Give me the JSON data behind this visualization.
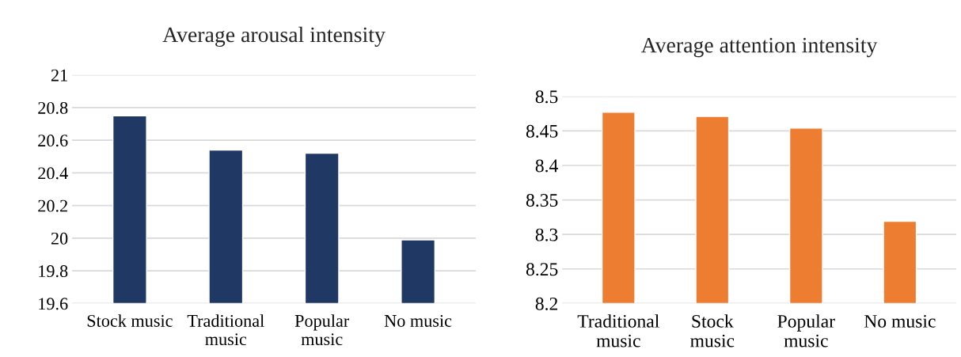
{
  "chart_data": [
    {
      "type": "bar",
      "title": "Average arousal intensity",
      "categories": [
        "Stock music",
        "Traditional\nmusic",
        "Popular\nmusic",
        "No music"
      ],
      "values": [
        20.75,
        20.54,
        20.52,
        19.99
      ],
      "color": "#203864",
      "ylim": [
        19.6,
        21
      ],
      "yticks": [
        19.6,
        19.8,
        20,
        20.2,
        20.4,
        20.6,
        20.8,
        21
      ],
      "grid": "y"
    },
    {
      "type": "bar",
      "title": "Average attention intensity",
      "categories": [
        "Traditional\nmusic",
        "Stock\nmusic",
        "Popular\nmusic",
        "No music"
      ],
      "values": [
        8.477,
        8.471,
        8.454,
        8.319
      ],
      "color": "#ed7d31",
      "ylim": [
        8.2,
        8.5
      ],
      "yticks": [
        8.2,
        8.25,
        8.3,
        8.35,
        8.4,
        8.45,
        8.5
      ],
      "grid": "y"
    }
  ]
}
